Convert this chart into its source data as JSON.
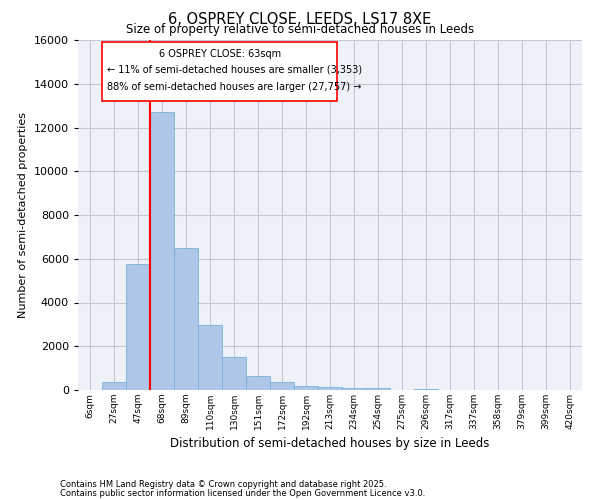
{
  "title": "6, OSPREY CLOSE, LEEDS, LS17 8XE",
  "subtitle": "Size of property relative to semi-detached houses in Leeds",
  "xlabel": "Distribution of semi-detached houses by size in Leeds",
  "ylabel": "Number of semi-detached properties",
  "bar_labels": [
    "6sqm",
    "27sqm",
    "47sqm",
    "68sqm",
    "89sqm",
    "110sqm",
    "130sqm",
    "151sqm",
    "172sqm",
    "192sqm",
    "213sqm",
    "234sqm",
    "254sqm",
    "275sqm",
    "296sqm",
    "317sqm",
    "337sqm",
    "358sqm",
    "379sqm",
    "399sqm",
    "420sqm"
  ],
  "bar_values": [
    0,
    350,
    5750,
    12700,
    6500,
    2950,
    1525,
    625,
    375,
    200,
    125,
    75,
    100,
    0,
    50,
    0,
    0,
    0,
    0,
    0,
    0
  ],
  "bar_color": "#aec6e8",
  "bar_edge_color": "#6aaad4",
  "grid_color": "#c0c8d8",
  "background_color": "#eef2f8",
  "vline_color": "red",
  "vline_x": 2.5,
  "annotation_title": "6 OSPREY CLOSE: 63sqm",
  "annotation_line1": "← 11% of semi-detached houses are smaller (3,353)",
  "annotation_line2": "88% of semi-detached houses are larger (27,757) →",
  "annotation_box_color": "white",
  "annotation_box_edge": "red",
  "ylim": [
    0,
    16000
  ],
  "yticks": [
    0,
    2000,
    4000,
    6000,
    8000,
    10000,
    12000,
    14000,
    16000
  ],
  "footer1": "Contains HM Land Registry data © Crown copyright and database right 2025.",
  "footer2": "Contains public sector information licensed under the Open Government Licence v3.0."
}
